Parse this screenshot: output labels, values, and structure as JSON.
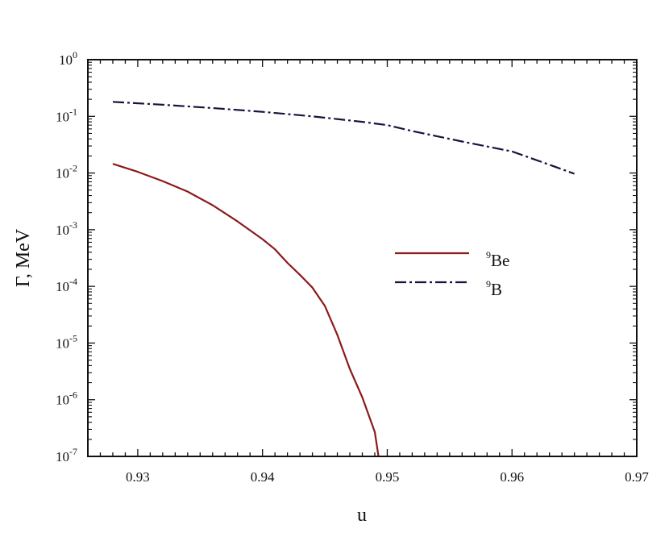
{
  "chart_data": {
    "type": "line",
    "title": "",
    "xlabel": "u",
    "ylabel": "Γ, MeV",
    "xlim": [
      0.926,
      0.97
    ],
    "ylim": [
      1e-07,
      1
    ],
    "yscale": "log",
    "x_ticks": [
      "0.93",
      "0.94",
      "0.95",
      "0.96",
      "0.97"
    ],
    "y_ticks": [
      {
        "base": "10",
        "exp": "0"
      },
      {
        "base": "10",
        "exp": "-1"
      },
      {
        "base": "10",
        "exp": "-2"
      },
      {
        "base": "10",
        "exp": "-3"
      },
      {
        "base": "10",
        "exp": "-4"
      },
      {
        "base": "10",
        "exp": "-5"
      },
      {
        "base": "10",
        "exp": "-6"
      },
      {
        "base": "10",
        "exp": "-7"
      }
    ],
    "grid": false,
    "legend_position": "center-right",
    "series": [
      {
        "name_sup": "9",
        "name_base": "Be",
        "color": "#8b1a1a",
        "style": "solid",
        "x": [
          0.928,
          0.93,
          0.932,
          0.934,
          0.936,
          0.938,
          0.94,
          0.941,
          0.942,
          0.943,
          0.944,
          0.945,
          0.946,
          0.947,
          0.948,
          0.949,
          0.9493
        ],
        "y": [
          0.0145,
          0.0105,
          0.0072,
          0.0047,
          0.0027,
          0.0014,
          0.00068,
          0.00045,
          0.00026,
          0.00016,
          9.5e-05,
          4.5e-05,
          1.4e-05,
          3.5e-06,
          1.1e-06,
          2.7e-07,
          1e-07
        ]
      },
      {
        "name_sup": "9",
        "name_base": "B",
        "color": "#14143c",
        "style": "dashdot",
        "x": [
          0.928,
          0.932,
          0.936,
          0.94,
          0.944,
          0.948,
          0.95,
          0.952,
          0.956,
          0.96,
          0.963,
          0.965
        ],
        "y": [
          0.18,
          0.16,
          0.14,
          0.12,
          0.1,
          0.08,
          0.07,
          0.055,
          0.036,
          0.024,
          0.014,
          0.0097
        ]
      }
    ]
  }
}
